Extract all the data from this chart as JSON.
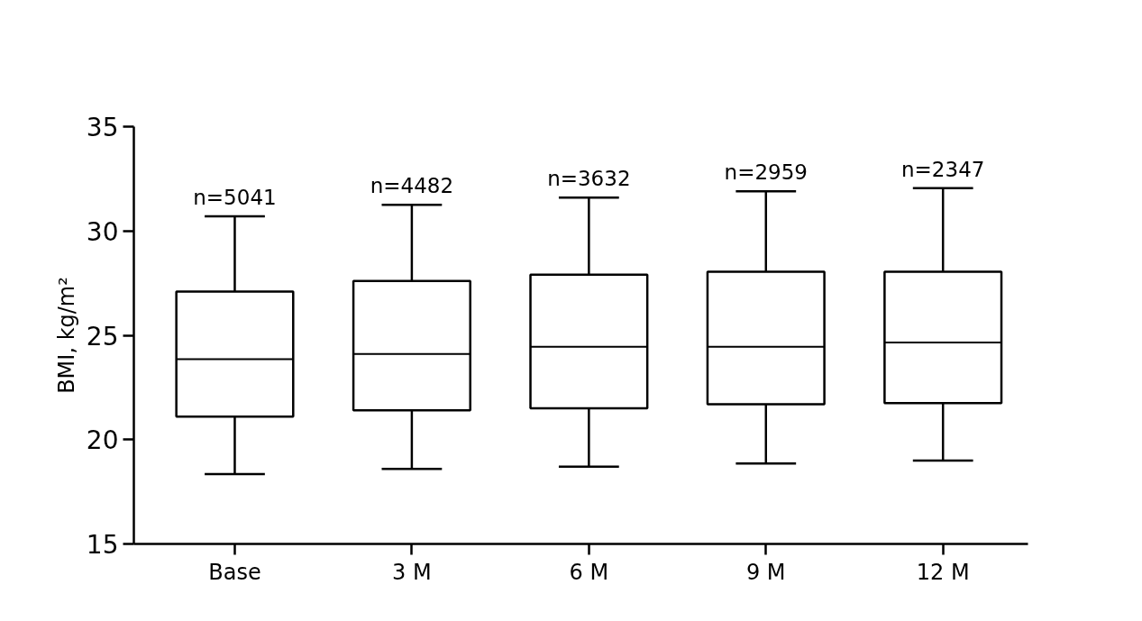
{
  "chart_data": {
    "type": "box",
    "ylabel": "BMI, kg/m²",
    "categories": [
      "Base",
      "3 M",
      "6 M",
      "9 M",
      "12 M"
    ],
    "boxes": [
      {
        "low": 18.35,
        "q1": 21.1,
        "median": 23.85,
        "q3": 27.1,
        "high": 30.7
      },
      {
        "low": 18.6,
        "q1": 21.4,
        "median": 24.1,
        "q3": 27.6,
        "high": 31.25
      },
      {
        "low": 18.7,
        "q1": 21.5,
        "median": 24.45,
        "q3": 27.9,
        "high": 31.6
      },
      {
        "low": 18.85,
        "q1": 21.7,
        "median": 24.45,
        "q3": 28.05,
        "high": 31.9
      },
      {
        "low": 19.0,
        "q1": 21.75,
        "median": 24.65,
        "q3": 28.05,
        "high": 32.05
      }
    ],
    "color": "#000000",
    "ylim": [
      15,
      35
    ],
    "yticks": [
      15,
      20,
      25,
      30,
      35
    ],
    "grid": false,
    "annotations": [
      {
        "text": "n=5041",
        "x": "Base",
        "y": 30.7
      },
      {
        "text": "n=4482",
        "x": "3 M",
        "y": 31.25
      },
      {
        "text": "n=3632",
        "x": "6 M",
        "y": 31.6
      },
      {
        "text": "n=2959",
        "x": "9 M",
        "y": 31.9
      },
      {
        "text": "n=2347",
        "x": "12 M",
        "y": 32.05
      }
    ]
  }
}
